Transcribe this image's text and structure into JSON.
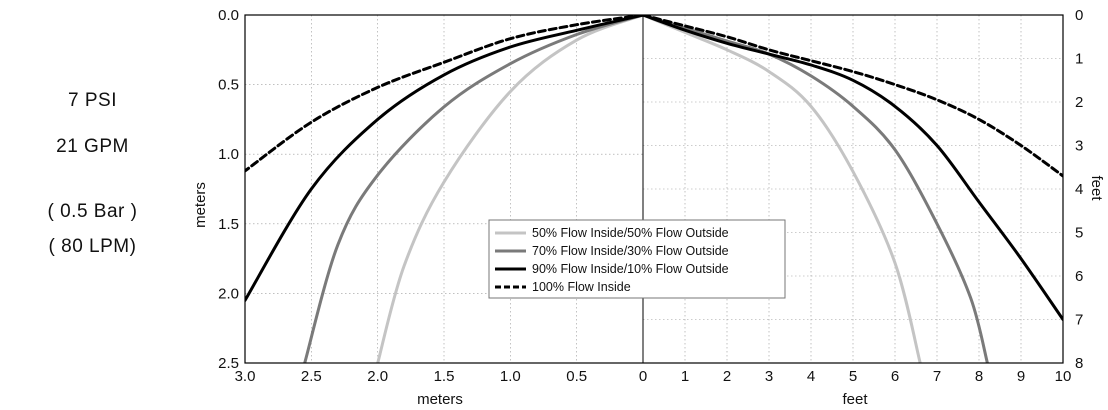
{
  "side_text": {
    "line1": "7 PSI",
    "line2": "21 GPM",
    "line3": "( 0.5  Bar )",
    "line4": "(  80  LPM)"
  },
  "chart_data": {
    "type": "line",
    "y_axis": {
      "label": "meters",
      "range": [
        0.0,
        2.5
      ],
      "inverted": true,
      "ticks": [
        "0.0",
        "0.5",
        "1.0",
        "1.5",
        "2.0",
        "2.5"
      ]
    },
    "y2_axis": {
      "label": "feet",
      "range": [
        0,
        8
      ],
      "inverted": true,
      "ticks": [
        "0",
        "1",
        "2",
        "3",
        "4",
        "5",
        "6",
        "7",
        "8"
      ]
    },
    "x_axis_left": {
      "label": "meters",
      "range": [
        3.0,
        0
      ],
      "ticks": [
        "3.0",
        "2.5",
        "2.0",
        "1.5",
        "1.0",
        "0.5"
      ]
    },
    "x_axis_right": {
      "label": "feet",
      "range": [
        0,
        10
      ],
      "ticks": [
        "0",
        "1",
        "2",
        "3",
        "4",
        "5",
        "6",
        "7",
        "8",
        "9",
        "10"
      ]
    },
    "grid": true,
    "legend_position": "lower-center",
    "series": [
      {
        "name": "50% Flow Inside/50% Flow Outside",
        "color": "#c4c4c4",
        "dash": "solid",
        "left_m": [
          [
            0,
            0
          ],
          [
            0.5,
            0.18
          ],
          [
            1.0,
            0.55
          ],
          [
            1.5,
            1.2
          ],
          [
            1.8,
            1.8
          ],
          [
            2.0,
            2.5
          ]
        ],
        "right_ft": [
          [
            0,
            0
          ],
          [
            1,
            0.4
          ],
          [
            2,
            0.8
          ],
          [
            3,
            1.3
          ],
          [
            4,
            2.1
          ],
          [
            5,
            3.6
          ],
          [
            6,
            5.7
          ],
          [
            6.6,
            8
          ]
        ]
      },
      {
        "name": "70% Flow Inside/30% Flow Outside",
        "color": "#7a7a7a",
        "dash": "solid",
        "left_m": [
          [
            0,
            0
          ],
          [
            0.5,
            0.14
          ],
          [
            1.0,
            0.35
          ],
          [
            1.5,
            0.66
          ],
          [
            2.0,
            1.15
          ],
          [
            2.3,
            1.65
          ],
          [
            2.55,
            2.5
          ]
        ],
        "right_ft": [
          [
            0,
            0
          ],
          [
            1,
            0.3
          ],
          [
            2,
            0.6
          ],
          [
            3,
            0.9
          ],
          [
            4,
            1.4
          ],
          [
            5,
            2.1
          ],
          [
            6,
            3.1
          ],
          [
            7,
            4.8
          ],
          [
            7.8,
            6.5
          ],
          [
            8.2,
            8
          ]
        ]
      },
      {
        "name": "90% Flow Inside/10% Flow Outside",
        "color": "#000000",
        "dash": "solid",
        "left_m": [
          [
            0,
            0
          ],
          [
            0.5,
            0.11
          ],
          [
            1.0,
            0.23
          ],
          [
            1.5,
            0.43
          ],
          [
            2.0,
            0.75
          ],
          [
            2.5,
            1.25
          ],
          [
            3.0,
            2.05
          ]
        ],
        "right_ft": [
          [
            0,
            0
          ],
          [
            1,
            0.35
          ],
          [
            2,
            0.65
          ],
          [
            3,
            0.9
          ],
          [
            4,
            1.15
          ],
          [
            5,
            1.5
          ],
          [
            6,
            2.1
          ],
          [
            7,
            3.0
          ],
          [
            8,
            4.3
          ],
          [
            9,
            5.6
          ],
          [
            10,
            7.0
          ]
        ]
      },
      {
        "name": "100% Flow Inside",
        "color": "#000000",
        "dash": "dashed",
        "left_m": [
          [
            0,
            0
          ],
          [
            0.5,
            0.07
          ],
          [
            1.0,
            0.17
          ],
          [
            1.5,
            0.34
          ],
          [
            2.0,
            0.52
          ],
          [
            2.5,
            0.77
          ],
          [
            3.0,
            1.12
          ]
        ],
        "right_ft": [
          [
            0,
            0
          ],
          [
            1,
            0.25
          ],
          [
            2,
            0.5
          ],
          [
            3,
            0.8
          ],
          [
            4,
            1.05
          ],
          [
            5,
            1.3
          ],
          [
            6,
            1.6
          ],
          [
            7,
            1.95
          ],
          [
            8,
            2.4
          ],
          [
            9,
            3.0
          ],
          [
            10,
            3.7
          ]
        ]
      }
    ]
  }
}
